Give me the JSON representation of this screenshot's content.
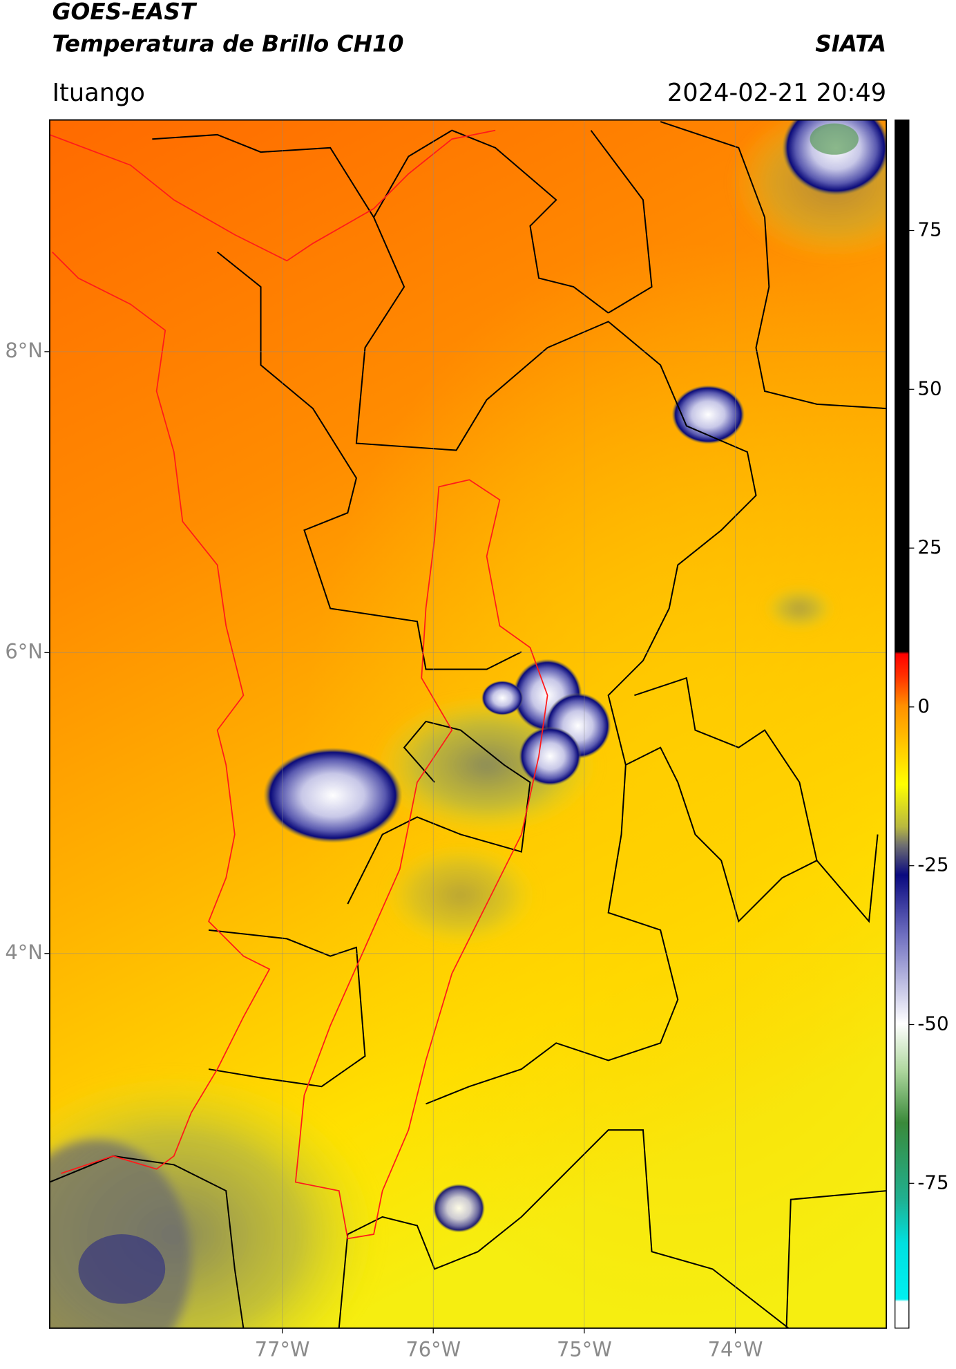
{
  "header": {
    "title": "GOES-EAST",
    "subtitle": "Temperatura de Brillo CH10",
    "brand": "SIATA",
    "location": "Ituango",
    "timestamp": "2024-02-21 20:49"
  },
  "map": {
    "xlim": [
      -78.54,
      -73.0
    ],
    "ylim": [
      1.51,
      9.54
    ],
    "xticks": [
      {
        "value": -77,
        "label": "77°W"
      },
      {
        "value": -76,
        "label": "76°W"
      },
      {
        "value": -75,
        "label": "75°W"
      },
      {
        "value": -74,
        "label": "74°W"
      }
    ],
    "yticks": [
      {
        "value": 8,
        "label": "8°N"
      },
      {
        "value": 6,
        "label": "6°N"
      },
      {
        "value": 4,
        "label": "4°N"
      }
    ],
    "grid": true
  },
  "colorbar": {
    "lim": [
      -97.8,
      92.4
    ],
    "ticks": [
      75,
      50,
      25,
      0,
      -25,
      -50,
      -75
    ]
  }
}
